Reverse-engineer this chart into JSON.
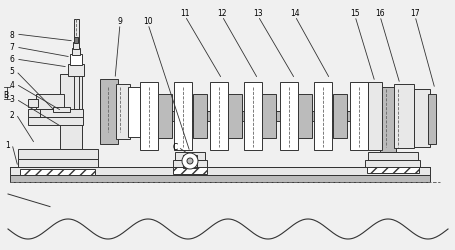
{
  "bg_color": "#f0f0f0",
  "line_color": "#333333",
  "gray_fill": "#bbbbbb",
  "dark_gray": "#777777",
  "light_gray": "#e8e8e8",
  "white": "#ffffff",
  "figsize": [
    4.56,
    2.51
  ],
  "dpi": 100,
  "xlim": [
    0,
    456
  ],
  "ylim": [
    0,
    251
  ]
}
